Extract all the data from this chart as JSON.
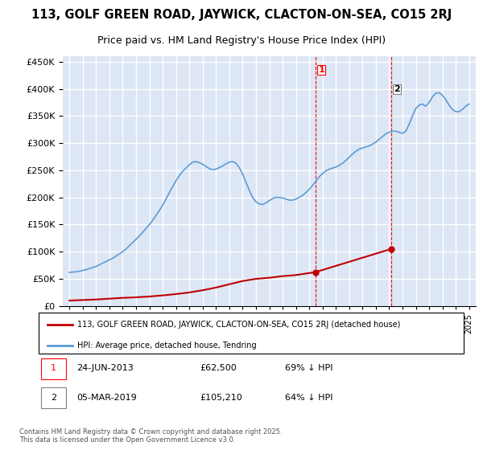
{
  "title_line1": "113, GOLF GREEN ROAD, JAYWICK, CLACTON-ON-SEA, CO15 2RJ",
  "title_line2": "Price paid vs. HM Land Registry's House Price Index (HPI)",
  "ylabel_ticks": [
    "£0",
    "£50K",
    "£100K",
    "£150K",
    "£200K",
    "£250K",
    "£300K",
    "£350K",
    "£400K",
    "£450K"
  ],
  "ytick_values": [
    0,
    50000,
    100000,
    150000,
    200000,
    250000,
    300000,
    350000,
    400000,
    450000
  ],
  "ylim": [
    0,
    460000
  ],
  "xlim_start": 1995,
  "xlim_end": 2026,
  "background_color": "#ffffff",
  "plot_bg_color": "#dce6f5",
  "grid_color": "#ffffff",
  "hpi_color": "#5b9bd5",
  "price_color": "#c00000",
  "sale1_date": "24-JUN-2013",
  "sale1_price": 62500,
  "sale1_label": "1",
  "sale1_x": 2013.48,
  "sale2_date": "05-MAR-2019",
  "sale2_price": 105210,
  "sale2_label": "2",
  "sale2_x": 2019.17,
  "vline_color": "#ff0000",
  "vline_style": "--",
  "legend_label_red": "113, GOLF GREEN ROAD, JAYWICK, CLACTON-ON-SEA, CO15 2RJ (detached house)",
  "legend_label_blue": "HPI: Average price, detached house, Tendring",
  "annotation1": "1     24-JUN-2013          £62,500          69% ↓ HPI",
  "annotation2": "2     05-MAR-2019          £105,210        64% ↓ HPI",
  "footer": "Contains HM Land Registry data © Crown copyright and database right 2025.\nThis data is licensed under the Open Government Licence v3.0.",
  "hpi_x": [
    1995,
    1995.25,
    1995.5,
    1995.75,
    1996,
    1996.25,
    1996.5,
    1996.75,
    1997,
    1997.25,
    1997.5,
    1997.75,
    1998,
    1998.25,
    1998.5,
    1998.75,
    1999,
    1999.25,
    1999.5,
    1999.75,
    2000,
    2000.25,
    2000.5,
    2000.75,
    2001,
    2001.25,
    2001.5,
    2001.75,
    2002,
    2002.25,
    2002.5,
    2002.75,
    2003,
    2003.25,
    2003.5,
    2003.75,
    2004,
    2004.25,
    2004.5,
    2004.75,
    2005,
    2005.25,
    2005.5,
    2005.75,
    2006,
    2006.25,
    2006.5,
    2006.75,
    2007,
    2007.25,
    2007.5,
    2007.75,
    2008,
    2008.25,
    2008.5,
    2008.75,
    2009,
    2009.25,
    2009.5,
    2009.75,
    2010,
    2010.25,
    2010.5,
    2010.75,
    2011,
    2011.25,
    2011.5,
    2011.75,
    2012,
    2012.25,
    2012.5,
    2012.75,
    2013,
    2013.25,
    2013.5,
    2013.75,
    2014,
    2014.25,
    2014.5,
    2014.75,
    2015,
    2015.25,
    2015.5,
    2015.75,
    2016,
    2016.25,
    2016.5,
    2016.75,
    2017,
    2017.25,
    2017.5,
    2017.75,
    2018,
    2018.25,
    2018.5,
    2018.75,
    2019,
    2019.25,
    2019.5,
    2019.75,
    2020,
    2020.25,
    2020.5,
    2020.75,
    2021,
    2021.25,
    2021.5,
    2021.75,
    2022,
    2022.25,
    2022.5,
    2022.75,
    2023,
    2023.25,
    2023.5,
    2023.75,
    2024,
    2024.25,
    2024.5,
    2024.75,
    2025
  ],
  "hpi_y": [
    62000,
    62500,
    63000,
    64000,
    65500,
    67000,
    69000,
    71000,
    73000,
    76000,
    79000,
    82000,
    85000,
    88000,
    92000,
    96000,
    100000,
    105000,
    111000,
    117000,
    123000,
    129000,
    136000,
    143000,
    150000,
    158000,
    167000,
    176000,
    186000,
    197000,
    209000,
    220000,
    231000,
    240000,
    248000,
    254000,
    260000,
    265000,
    266000,
    264000,
    261000,
    257000,
    253000,
    251000,
    252000,
    255000,
    258000,
    262000,
    265000,
    266000,
    263000,
    255000,
    243000,
    228000,
    213000,
    200000,
    192000,
    188000,
    187000,
    190000,
    194000,
    198000,
    200000,
    200000,
    199000,
    197000,
    195000,
    195000,
    197000,
    200000,
    204000,
    209000,
    215000,
    222000,
    230000,
    238000,
    244000,
    249000,
    252000,
    254000,
    256000,
    259000,
    263000,
    268000,
    274000,
    280000,
    285000,
    289000,
    291000,
    293000,
    295000,
    298000,
    302000,
    307000,
    312000,
    317000,
    320000,
    322000,
    322000,
    320000,
    318000,
    322000,
    335000,
    350000,
    364000,
    370000,
    372000,
    368000,
    375000,
    385000,
    392000,
    393000,
    388000,
    380000,
    370000,
    362000,
    358000,
    358000,
    362000,
    368000,
    372000
  ],
  "price_x": [
    1995,
    1996,
    1997,
    1998,
    1999,
    2000,
    2001,
    2002,
    2003,
    2004,
    2005,
    2006,
    2007,
    2008,
    2009,
    2010,
    2011,
    2012,
    2013.48,
    2019.17
  ],
  "price_y": [
    10000,
    11000,
    12000,
    13500,
    15000,
    16000,
    17500,
    19500,
    22000,
    25000,
    29000,
    34000,
    40000,
    46000,
    50000,
    52000,
    55000,
    57000,
    62500,
    105210
  ],
  "xtick_years": [
    1995,
    1996,
    1997,
    1998,
    1999,
    2000,
    2001,
    2002,
    2003,
    2004,
    2005,
    2006,
    2007,
    2008,
    2009,
    2010,
    2011,
    2012,
    2013,
    2014,
    2015,
    2016,
    2017,
    2018,
    2019,
    2020,
    2021,
    2022,
    2023,
    2024,
    2025
  ]
}
